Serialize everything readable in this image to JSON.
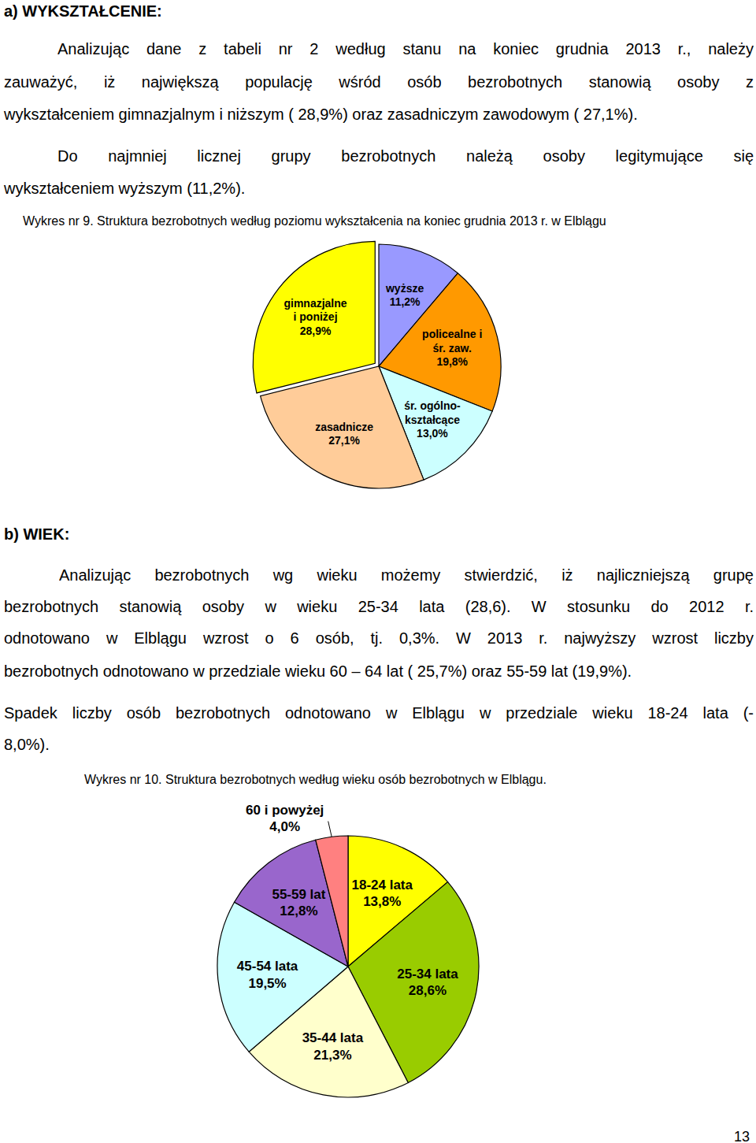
{
  "page": {
    "heading_a": "a) WYKSZTAŁCENIE:",
    "paragraphs_a": [
      [
        "Analizując dane z tabeli nr 2 według stanu na koniec grudnia 2013 r., należy",
        "zauważyć, iż największą populację wśród osób bezrobotnych stanowią osoby z",
        "wykształceniem gimnazjalnym i niższym ( 28,9%) oraz zasadniczym zawodowym ( 27,1%)."
      ],
      [
        "Do najmniej licznej grupy bezrobotnych należą osoby legitymujące się",
        "wykształceniem wyższym (11,2%)."
      ]
    ],
    "heading_b": "b) WIEK:",
    "paragraphs_b": [
      [
        "Analizując bezrobotnych wg wieku możemy stwierdzić, iż najliczniejszą grupę",
        "bezrobotnych stanowią osoby w wieku 25-34 lata (28,6). W stosunku do 2012 r.",
        "odnotowano w Elblągu  wzrost o 6 osób, tj. 0,3%. W 2013 r. najwyższy wzrost liczby",
        "bezrobotnych odnotowano w przedziale wieku 60 – 64 lat ( 25,7%) oraz 55-59 lat (19,9%)."
      ],
      [
        "Spadek liczby osób bezrobotnych odnotowano w Elblągu w przedziale wieku 18-24 lata (-",
        "8,0%)."
      ]
    ],
    "page_number": "13"
  },
  "chart_data": [
    {
      "type": "pie",
      "title": "Wykres nr 9. Struktura bezrobotnych według poziomu wykształcenia na koniec grudnia 2013 r. w Elblągu",
      "categories": [
        "wyższe",
        "policealne i\nśr. zaw.",
        "śr. ogólno-\nkształcące",
        "zasadnicze",
        "gimnazjalne\ni poniżej"
      ],
      "values": [
        11.2,
        19.8,
        13.0,
        27.1,
        28.9
      ],
      "value_labels": [
        "11,2%",
        "19,8%",
        "13,0%",
        "27,1%",
        "28,9%"
      ],
      "colors": [
        "#9999ff",
        "#ff9900",
        "#ccffff",
        "#ffcc99",
        "#ffff00"
      ],
      "data_labels": true
    },
    {
      "type": "pie",
      "title": "Wykres nr 10. Struktura bezrobotnych według wieku osób bezrobotnych w Elblągu.",
      "categories": [
        "18-24 lata",
        "25-34 lata",
        "35-44 lata",
        "45-54 lata",
        "55-59 lat",
        "60 i powyżej"
      ],
      "values": [
        13.8,
        28.6,
        21.3,
        19.5,
        12.8,
        4.0
      ],
      "value_labels": [
        "13,8%",
        "28,6%",
        "21,3%",
        "19,5%",
        "12,8%",
        "4,0%"
      ],
      "colors": [
        "#ffff00",
        "#99cc00",
        "#ffffcc",
        "#ccffff",
        "#9966cc",
        "#ff8080"
      ],
      "data_labels": true
    }
  ]
}
